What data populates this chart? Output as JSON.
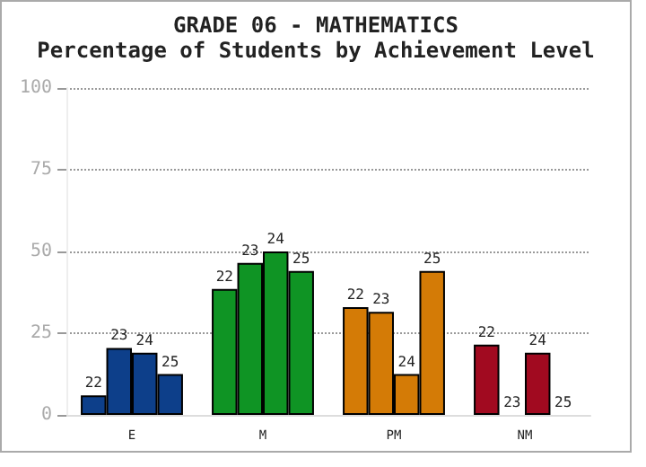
{
  "chart_data": {
    "type": "bar",
    "title": "GRADE 06 - MATHEMATICS",
    "subtitle": "Percentage of Students by Achievement Level",
    "categories": [
      "E",
      "M",
      "PM",
      "NM"
    ],
    "series": [
      {
        "name": "22",
        "colors": [
          "#0d3f8a",
          "#0f9424",
          "#d47b06",
          "#a10a20"
        ],
        "values": [
          6,
          38.5,
          33,
          21.5
        ]
      },
      {
        "name": "23",
        "colors": [
          "#0d3f8a",
          "#0f9424",
          "#d47b06",
          "#a10a20"
        ],
        "values": [
          20.5,
          46.5,
          31.5,
          0
        ]
      },
      {
        "name": "24",
        "colors": [
          "#0d3f8a",
          "#0f9424",
          "#d47b06",
          "#a10a20"
        ],
        "values": [
          19,
          50,
          12.5,
          19
        ]
      },
      {
        "name": "25",
        "colors": [
          "#0d3f8a",
          "#0f9424",
          "#d47b06",
          "#a10a20"
        ],
        "values": [
          12.5,
          44,
          44,
          0
        ]
      }
    ],
    "ylim": [
      0,
      100
    ],
    "yticks": [
      0,
      25,
      50,
      75,
      100
    ],
    "grid": "y",
    "legend": false
  }
}
